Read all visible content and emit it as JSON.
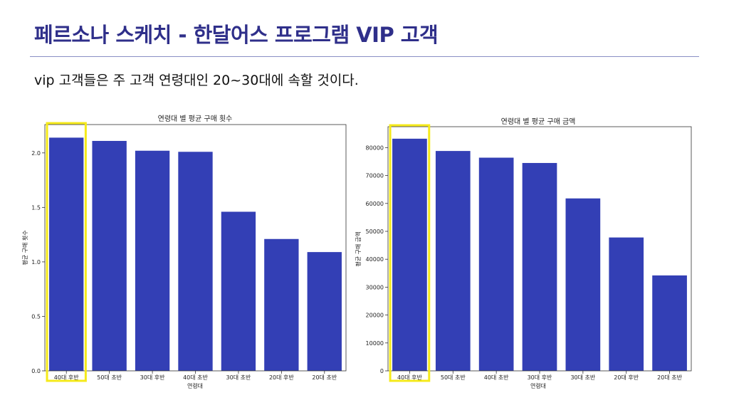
{
  "slide": {
    "title": "페르소나 스케치 - 한달어스 프로그램 VIP 고객",
    "subtitle": "vip 고객들은 주 고객 연령대인 20~30대에 속할 것이다."
  },
  "colors": {
    "bar": "#333fb5",
    "highlight": "#f5ea1b",
    "title": "#2f2f8a"
  },
  "chart_data": [
    {
      "type": "bar",
      "title": "연령대 별 평균 구매 횟수",
      "xlabel": "연령대",
      "ylabel": "평균 구매 횟수",
      "categories": [
        "40대 후반",
        "50대 초반",
        "30대 후반",
        "40대 초반",
        "30대 초반",
        "20대 후반",
        "20대 초반"
      ],
      "values": [
        2.14,
        2.11,
        2.02,
        2.01,
        1.46,
        1.21,
        1.09
      ],
      "ylim": [
        0,
        2.26
      ],
      "yticks": [
        0.0,
        0.5,
        1.0,
        1.5,
        2.0
      ],
      "ytick_labels": [
        "0.0",
        "0.5",
        "1.0",
        "1.5",
        "2.0"
      ],
      "highlight_index": 0
    },
    {
      "type": "bar",
      "title": "연령대 별 평균 구매 금액",
      "xlabel": "연령대",
      "ylabel": "평균 구매 금액",
      "categories": [
        "40대 후반",
        "50대 초반",
        "40대 초반",
        "30대 후반",
        "30대 초반",
        "20대 후반",
        "20대 초반"
      ],
      "values": [
        83200,
        78800,
        76400,
        74500,
        61800,
        47800,
        34200
      ],
      "ylim": [
        0,
        87500
      ],
      "yticks": [
        0,
        10000,
        20000,
        30000,
        40000,
        50000,
        60000,
        70000,
        80000
      ],
      "ytick_labels": [
        "0",
        "10000",
        "20000",
        "30000",
        "40000",
        "50000",
        "60000",
        "70000",
        "80000"
      ],
      "highlight_index": 0
    }
  ]
}
